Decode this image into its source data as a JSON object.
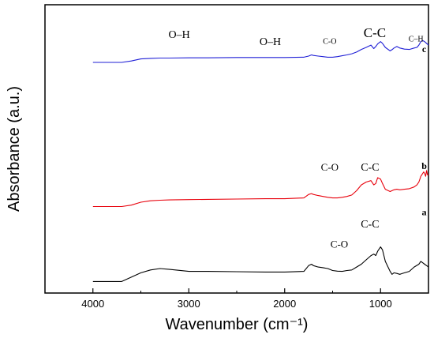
{
  "chart_data": {
    "type": "line",
    "title": "",
    "xlabel": "Wavenumber (cm⁻¹)",
    "ylabel": "Absorbance (a.u.)",
    "xlim": [
      4500,
      500
    ],
    "x_reversed": true,
    "y_ticks_shown": false,
    "xticks": [
      4000,
      3000,
      2000,
      1000
    ],
    "grid": false,
    "legend": "none",
    "series": [
      {
        "name": "a",
        "color": "#000000",
        "x": [
          4000,
          3700,
          3600,
          3500,
          3400,
          3300,
          3200,
          3000,
          2800,
          2500,
          2200,
          2000,
          1800,
          1750,
          1720,
          1700,
          1650,
          1600,
          1550,
          1500,
          1450,
          1400,
          1350,
          1300,
          1250,
          1200,
          1150,
          1100,
          1070,
          1050,
          1030,
          1000,
          980,
          950,
          900,
          880,
          860,
          830,
          800,
          750,
          700,
          650,
          600,
          580,
          560,
          540,
          520,
          500
        ],
        "y": [
          0.04,
          0.04,
          0.055,
          0.07,
          0.08,
          0.085,
          0.082,
          0.075,
          0.075,
          0.074,
          0.073,
          0.073,
          0.075,
          0.095,
          0.1,
          0.095,
          0.09,
          0.088,
          0.085,
          0.078,
          0.076,
          0.075,
          0.078,
          0.08,
          0.09,
          0.1,
          0.115,
          0.13,
          0.135,
          0.13,
          0.145,
          0.16,
          0.15,
          0.11,
          0.075,
          0.065,
          0.07,
          0.068,
          0.065,
          0.07,
          0.075,
          0.09,
          0.1,
          0.11,
          0.105,
          0.1,
          0.095,
          0.09
        ]
      },
      {
        "name": "b",
        "color": "#e8000b",
        "x": [
          4000,
          3700,
          3600,
          3500,
          3400,
          3300,
          3200,
          3000,
          2800,
          2500,
          2200,
          2000,
          1800,
          1750,
          1720,
          1700,
          1650,
          1600,
          1550,
          1500,
          1450,
          1400,
          1350,
          1300,
          1250,
          1200,
          1150,
          1100,
          1070,
          1050,
          1030,
          1000,
          980,
          950,
          900,
          880,
          860,
          830,
          800,
          750,
          700,
          650,
          620,
          600,
          590,
          580,
          570,
          560,
          550,
          540,
          530,
          520,
          510,
          500
        ],
        "y": [
          0.3,
          0.3,
          0.305,
          0.315,
          0.32,
          0.322,
          0.323,
          0.324,
          0.325,
          0.326,
          0.327,
          0.327,
          0.33,
          0.342,
          0.345,
          0.342,
          0.338,
          0.335,
          0.332,
          0.33,
          0.33,
          0.332,
          0.335,
          0.34,
          0.355,
          0.375,
          0.385,
          0.39,
          0.375,
          0.38,
          0.4,
          0.395,
          0.38,
          0.36,
          0.352,
          0.355,
          0.358,
          0.36,
          0.358,
          0.36,
          0.362,
          0.368,
          0.375,
          0.385,
          0.395,
          0.405,
          0.41,
          0.415,
          0.42,
          0.415,
          0.405,
          0.425,
          0.41,
          0.408
        ]
      },
      {
        "name": "c",
        "color": "#1f1fd6",
        "x": [
          4000,
          3700,
          3600,
          3500,
          3400,
          3300,
          3200,
          3000,
          2800,
          2500,
          2200,
          2000,
          1800,
          1750,
          1720,
          1700,
          1650,
          1600,
          1550,
          1500,
          1450,
          1400,
          1350,
          1300,
          1250,
          1200,
          1150,
          1100,
          1070,
          1050,
          1030,
          1000,
          980,
          950,
          900,
          880,
          860,
          830,
          800,
          750,
          700,
          650,
          620,
          600,
          580,
          560,
          540,
          520,
          500
        ],
        "y": [
          0.8,
          0.8,
          0.805,
          0.812,
          0.814,
          0.815,
          0.815,
          0.816,
          0.816,
          0.817,
          0.817,
          0.817,
          0.818,
          0.822,
          0.826,
          0.824,
          0.822,
          0.82,
          0.818,
          0.818,
          0.82,
          0.823,
          0.826,
          0.83,
          0.836,
          0.845,
          0.852,
          0.86,
          0.848,
          0.855,
          0.864,
          0.872,
          0.866,
          0.852,
          0.84,
          0.844,
          0.85,
          0.855,
          0.85,
          0.846,
          0.845,
          0.85,
          0.852,
          0.86,
          0.872,
          0.876,
          0.872,
          0.866,
          0.86
        ]
      }
    ],
    "annotations": [
      {
        "text": "O–H",
        "x": 3100,
        "y": 0.885,
        "size": 14
      },
      {
        "text": "O–H",
        "x": 2150,
        "y": 0.86,
        "size": 14
      },
      {
        "text": "C-O",
        "x": 1530,
        "y": 0.865,
        "size": 10
      },
      {
        "text": "C-C",
        "x": 1060,
        "y": 0.888,
        "size": 17
      },
      {
        "text": "C–H",
        "x": 630,
        "y": 0.873,
        "size": 10
      },
      {
        "text": "C-O",
        "x": 1530,
        "y": 0.425,
        "size": 13
      },
      {
        "text": "C-C",
        "x": 1110,
        "y": 0.425,
        "size": 14
      },
      {
        "text": "C-O",
        "x": 1430,
        "y": 0.158,
        "size": 13
      },
      {
        "text": "C-C",
        "x": 1110,
        "y": 0.228,
        "size": 14
      }
    ],
    "trace_labels": [
      {
        "text": "c",
        "x": 545,
        "y": 0.835
      },
      {
        "text": "b",
        "x": 545,
        "y": 0.43
      },
      {
        "text": "a",
        "x": 545,
        "y": 0.27
      }
    ]
  }
}
